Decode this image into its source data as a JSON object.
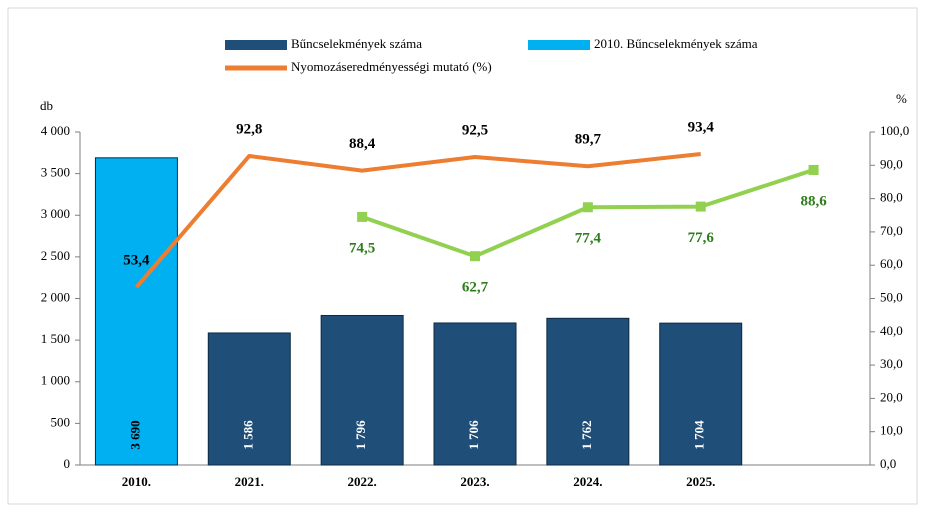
{
  "chart_data": {
    "type": "bar-line",
    "categories": [
      "2010.",
      "2021.",
      "2022.",
      "2023.",
      "2024.",
      "2025.",
      null
    ],
    "ylabel": "db",
    "y2label": "%",
    "ylim": [
      0,
      4000
    ],
    "yticks": [
      0,
      500,
      {
        "value": 1000,
        "label": "1 000"
      },
      {
        "value": 1500,
        "label": "1 500"
      },
      {
        "value": 2000,
        "label": "2 000"
      },
      {
        "value": 2500,
        "label": "2 500"
      },
      {
        "value": 3000,
        "label": "3 000"
      },
      {
        "value": 3500,
        "label": "3 500"
      },
      {
        "value": 4000,
        "label": "4 000"
      }
    ],
    "y2lim": [
      0,
      100
    ],
    "y2ticks": [
      {
        "value": 0,
        "label": "0,0"
      },
      {
        "value": 10,
        "label": "10,0"
      },
      {
        "value": 20,
        "label": "20,0"
      },
      {
        "value": 30,
        "label": "30,0"
      },
      {
        "value": 40,
        "label": "40,0"
      },
      {
        "value": 50,
        "label": "50,0"
      },
      {
        "value": 60,
        "label": "60,0"
      },
      {
        "value": 70,
        "label": "70,0"
      },
      {
        "value": 80,
        "label": "80,0"
      },
      {
        "value": 90,
        "label": "90,0"
      },
      {
        "value": 100,
        "label": "100,0"
      }
    ],
    "legend": "top",
    "series": [
      {
        "name": "Bűncselekmények száma",
        "kind": "bar",
        "color": "#1f4e79",
        "label_color": "#ffffff",
        "values": [
          null,
          1586,
          1796,
          1706,
          1762,
          1704,
          null
        ],
        "value_labels": [
          null,
          "1 586",
          "1 796",
          "1 706",
          "1 762",
          "1 704",
          null
        ]
      },
      {
        "name": "2010. Bűncselekmények száma",
        "kind": "bar",
        "color": "#00b0f0",
        "label_color": "#000000",
        "values": [
          3690,
          null,
          null,
          null,
          null,
          null,
          null
        ],
        "value_labels": [
          "3 690",
          null,
          null,
          null,
          null,
          null,
          null
        ]
      },
      {
        "name": "Nyomozáseredményességi mutató (%)",
        "kind": "line",
        "axis": "y2",
        "color": "#ed7d31",
        "label_color": "#000000",
        "values": [
          53.4,
          92.8,
          88.4,
          92.5,
          89.7,
          93.4,
          null
        ],
        "value_labels": [
          "53,4",
          "92,8",
          "88,4",
          "92,5",
          "89,7",
          "93,4",
          null
        ]
      },
      {
        "kind": "line",
        "axis": "y2",
        "color": "#92d050",
        "label_color": "#2e7d1a",
        "markers": true,
        "values": [
          null,
          null,
          74.5,
          62.7,
          77.4,
          77.6,
          88.6
        ],
        "value_labels": [
          null,
          null,
          "74,5",
          "62,7",
          "77,4",
          "77,6",
          "88,6"
        ]
      }
    ]
  }
}
